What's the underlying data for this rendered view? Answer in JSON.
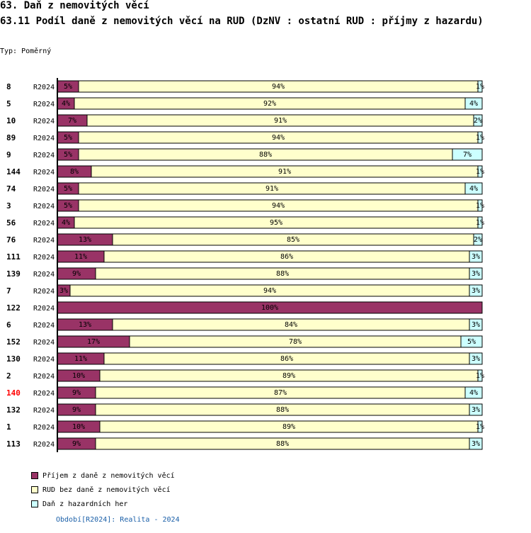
{
  "header": {
    "title": "63. Daň z nemovitých věcí",
    "subtitle": "63.11 Podíl daně z nemovitých věcí na RUD (DzNV : ostatní RUD : příjmy z hazardu)",
    "type_label": "Typ: Poměrný"
  },
  "colors": {
    "series1": "#993366",
    "series2": "#ffffcc",
    "series3": "#ccffff",
    "highlight_label": "#ff0000"
  },
  "chart_data": {
    "type": "bar",
    "orientation": "horizontal",
    "stacked": true,
    "normalized_percent": true,
    "categories": [
      "8",
      "5",
      "10",
      "89",
      "9",
      "144",
      "74",
      "3",
      "56",
      "76",
      "111",
      "139",
      "7",
      "122",
      "6",
      "152",
      "130",
      "2",
      "140",
      "132",
      "1",
      "113"
    ],
    "period_labels": [
      "R2024",
      "R2024",
      "R2024",
      "R2024",
      "R2024",
      "R2024",
      "R2024",
      "R2024",
      "R2024",
      "R2024",
      "R2024",
      "R2024",
      "R2024",
      "R2024",
      "R2024",
      "R2024",
      "R2024",
      "R2024",
      "R2024",
      "R2024",
      "R2024",
      "R2024"
    ],
    "highlighted_category": "140",
    "series": [
      {
        "name": "Příjem z daně z nemovitých věcí",
        "values": [
          5,
          4,
          7,
          5,
          5,
          8,
          5,
          5,
          4,
          13,
          11,
          9,
          3,
          100,
          13,
          17,
          11,
          10,
          9,
          9,
          10,
          9
        ]
      },
      {
        "name": "RUD bez daně z nemovitých věcí",
        "values": [
          94,
          92,
          91,
          94,
          88,
          91,
          91,
          94,
          95,
          85,
          86,
          88,
          94,
          0,
          84,
          78,
          86,
          89,
          87,
          88,
          89,
          88
        ]
      },
      {
        "name": "Daň z hazardních her",
        "values": [
          1,
          4,
          2,
          1,
          7,
          1,
          4,
          1,
          1,
          2,
          3,
          3,
          3,
          0,
          3,
          5,
          3,
          1,
          4,
          3,
          1,
          3
        ]
      }
    ],
    "legend": [
      "Příjem z daně z nemovitých věcí",
      "RUD bez daně z nemovitých věcí",
      "Daň z hazardních her"
    ],
    "xlim": [
      0,
      100
    ]
  },
  "footer": {
    "period_text": "Období[R2024]: Realita - 2024"
  }
}
